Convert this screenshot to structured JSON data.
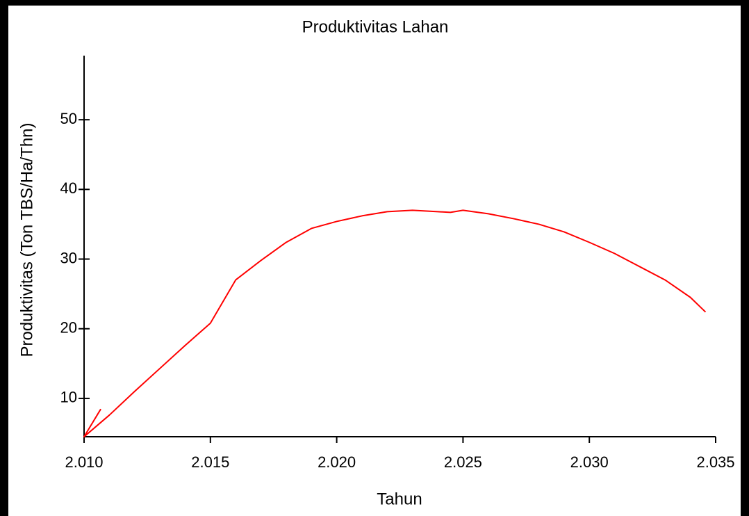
{
  "chart_data": {
    "type": "line",
    "title": "Produktivitas Lahan",
    "x_label": "Tahun",
    "y_label": "Produktivitas (Ton TBS/Ha/Thn)",
    "x": [
      2010,
      2010.65,
      2010,
      2011,
      2012,
      2013,
      2014,
      2015,
      2016,
      2017,
      2018,
      2019,
      2020,
      2021,
      2022,
      2023,
      2024,
      2024.5,
      2025,
      2026,
      2027,
      2028,
      2029,
      2030,
      2031,
      2032,
      2033,
      2034,
      2034.6
    ],
    "series": [
      {
        "name": "Produktivitas",
        "color": "#ff0000",
        "values": [
          4.5,
          8.4,
          4.5,
          7.6,
          11,
          14.3,
          17.6,
          20.8,
          27,
          29.8,
          32.4,
          34.4,
          35.4,
          36.2,
          36.8,
          37,
          36.8,
          36.7,
          37,
          36.5,
          35.8,
          35,
          33.9,
          32.4,
          30.8,
          28.9,
          27,
          24.5,
          22.4
        ]
      }
    ],
    "xlim": [
      2010,
      2035
    ],
    "xticks": [
      {
        "value": 2010,
        "label": "2.010"
      },
      {
        "value": 2015,
        "label": "2.015"
      },
      {
        "value": 2020,
        "label": "2.020"
      },
      {
        "value": 2025,
        "label": "2.025"
      },
      {
        "value": 2030,
        "label": "2.030"
      },
      {
        "value": 2035,
        "label": "2.035"
      }
    ],
    "ylim": [
      4.5,
      59.2
    ],
    "yticks": [
      10,
      20,
      30,
      40,
      50
    ],
    "grid": false
  }
}
